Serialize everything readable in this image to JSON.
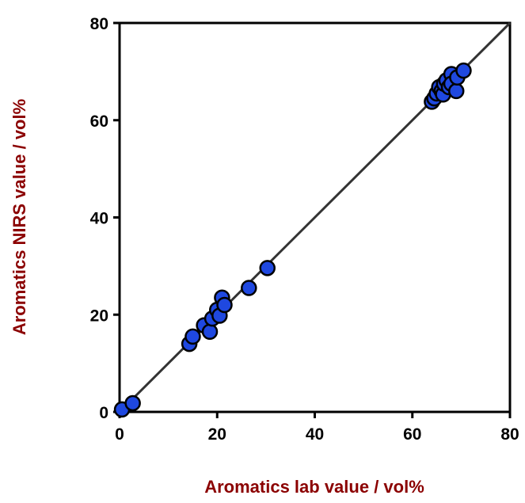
{
  "chart_data": {
    "type": "scatter",
    "xlabel": "Aromatics lab value / vol%",
    "ylabel": "Aromatics NIRS value / vol%",
    "xlim": [
      0,
      80
    ],
    "ylim": [
      0,
      80
    ],
    "x_ticks": [
      "0",
      "20",
      "40",
      "60",
      "80"
    ],
    "y_ticks": [
      "0",
      "20",
      "40",
      "60",
      "80"
    ],
    "grid": false,
    "reference_line": {
      "from": [
        0,
        0
      ],
      "to": [
        80,
        80
      ]
    },
    "series": [
      {
        "points": [
          [
            0.5,
            0.5
          ],
          [
            2.7,
            1.8
          ],
          [
            14.3,
            14.0
          ],
          [
            15.0,
            15.5
          ],
          [
            17.3,
            17.8
          ],
          [
            18.5,
            16.5
          ],
          [
            19.0,
            19.2
          ],
          [
            20.0,
            21.0
          ],
          [
            20.5,
            19.8
          ],
          [
            21.0,
            23.5
          ],
          [
            21.5,
            22.0
          ],
          [
            26.5,
            25.5
          ],
          [
            30.3,
            29.6
          ],
          [
            64.0,
            63.8
          ],
          [
            64.5,
            64.5
          ],
          [
            65.0,
            65.5
          ],
          [
            65.5,
            66.8
          ],
          [
            66.0,
            66.0
          ],
          [
            66.3,
            65.3
          ],
          [
            66.5,
            67.5
          ],
          [
            67.0,
            68.2
          ],
          [
            67.5,
            66.8
          ],
          [
            68.0,
            69.5
          ],
          [
            68.0,
            67.5
          ],
          [
            69.0,
            66.0
          ],
          [
            69.2,
            68.8
          ],
          [
            70.5,
            70.2
          ]
        ]
      }
    ],
    "colors": {
      "marker_fill": "#1f48e0",
      "marker_stroke": "#000000",
      "axis_title": "#8b0000",
      "line": "#333333"
    }
  }
}
